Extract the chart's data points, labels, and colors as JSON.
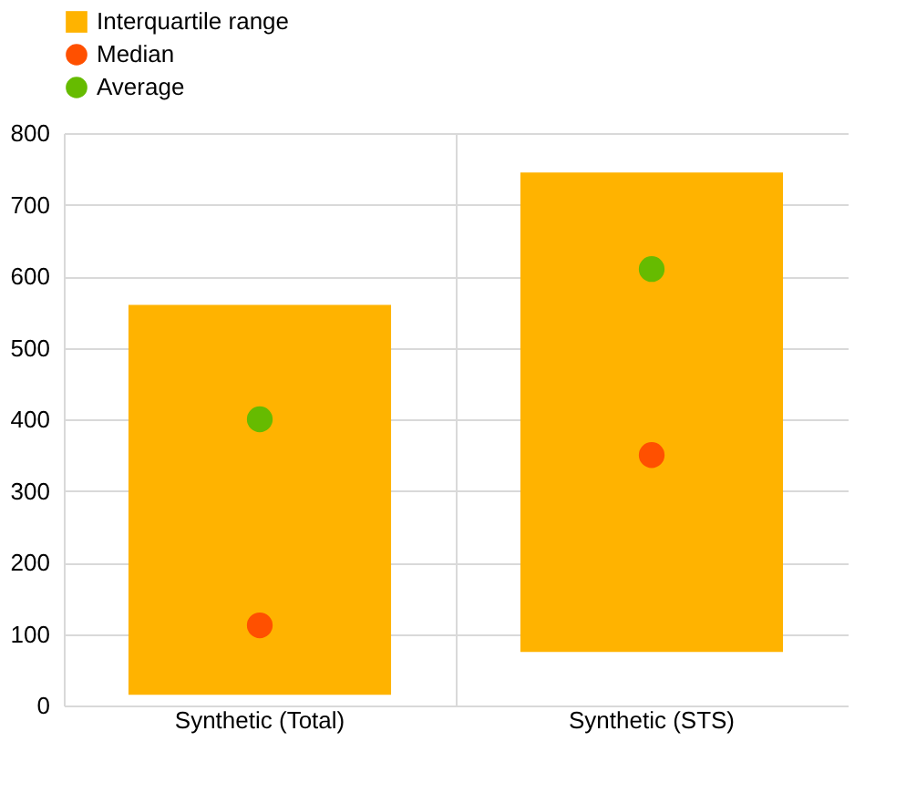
{
  "chart_data": {
    "type": "bar",
    "categories": [
      "Synthetic (Total)",
      "Synthetic (STS)"
    ],
    "series": [
      {
        "name": "Interquartile range",
        "color": "#ffb300",
        "base": [
          15,
          75
        ],
        "values": [
          545,
          670
        ]
      },
      {
        "name": "Median",
        "type": "scatter",
        "color": "#ff5000",
        "marker": "circle",
        "x": [
          "Synthetic (Total)",
          "Synthetic (STS)"
        ],
        "values": [
          112,
          350
        ]
      },
      {
        "name": "Average",
        "type": "scatter",
        "color": "#66bb00",
        "marker": "circle",
        "x": [
          "Synthetic (Total)",
          "Synthetic (STS)"
        ],
        "values": [
          400,
          610
        ]
      }
    ],
    "ylim": [
      0,
      800
    ],
    "yticks": [
      0,
      100,
      200,
      300,
      400,
      500,
      600,
      700,
      800
    ],
    "grid": true,
    "legend": "top left"
  }
}
